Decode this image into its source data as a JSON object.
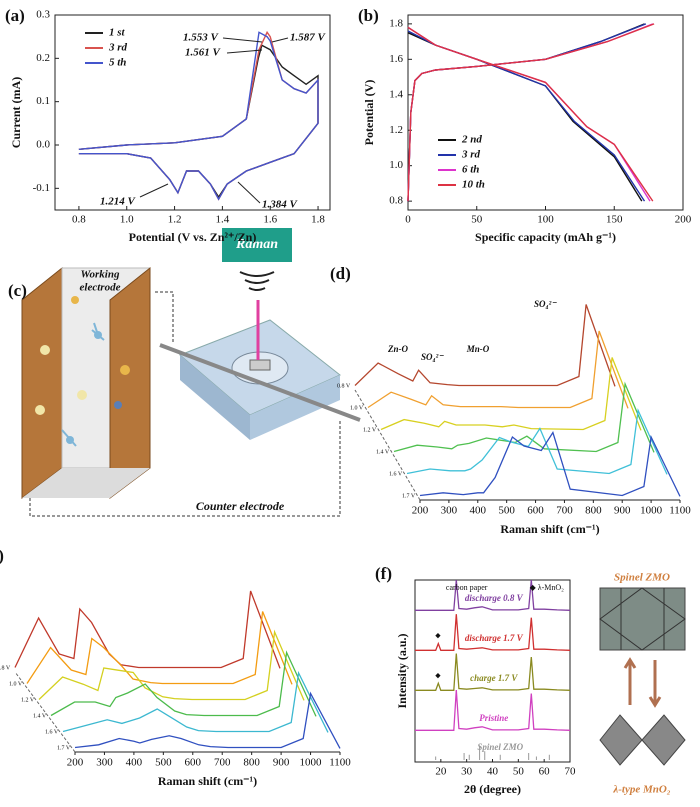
{
  "chart_data": [
    {
      "type": "line",
      "label": "(a)",
      "xlabel": "Potential (V vs. Zn²⁺/Zn)",
      "ylabel": "Current (mA)",
      "xlim": [
        0.7,
        1.85
      ],
      "ylim": [
        -0.15,
        0.3
      ],
      "xticks": [
        0.8,
        {
          "value": 1,
          "label": "1.0"
        },
        1.2,
        1.4,
        1.6,
        1.8
      ],
      "yticks": [
        -0.1,
        {
          "value": 0,
          "label": "0.0"
        },
        0.1,
        0.2,
        0.3
      ],
      "legend": "upper left",
      "annotations": [
        "1.553 V",
        "1.587 V",
        "1.561 V",
        "1.214 V",
        "1.384 V"
      ],
      "series": [
        {
          "name": "1 st",
          "color": "#222222",
          "x": [
            0.8,
            1.0,
            1.2,
            1.4,
            1.5,
            1.55,
            1.565,
            1.6,
            1.65,
            1.7,
            1.75,
            1.8,
            1.8,
            1.7,
            1.6,
            1.5,
            1.42,
            1.384,
            1.35,
            1.3,
            1.25,
            1.214,
            1.18,
            1.1,
            1.0,
            0.8
          ],
          "values": [
            -0.01,
            0,
            0.005,
            0.02,
            0.06,
            0.2,
            0.23,
            0.22,
            0.18,
            0.16,
            0.14,
            0.16,
            0.05,
            -0.02,
            -0.04,
            -0.06,
            -0.09,
            -0.12,
            -0.09,
            -0.06,
            -0.06,
            -0.11,
            -0.08,
            -0.03,
            -0.02,
            -0.02
          ]
        },
        {
          "name": "3 rd",
          "color": "#d9534f",
          "x": [
            0.8,
            1.0,
            1.2,
            1.4,
            1.5,
            1.553,
            1.587,
            1.6,
            1.65,
            1.7,
            1.75,
            1.8,
            1.8,
            1.7,
            1.6,
            1.5,
            1.42,
            1.384,
            1.35,
            1.3,
            1.25,
            1.214,
            1.18,
            1.1,
            1.0,
            0.8
          ],
          "values": [
            -0.01,
            0,
            0.005,
            0.02,
            0.06,
            0.22,
            0.26,
            0.25,
            0.15,
            0.13,
            0.12,
            0.15,
            0.05,
            -0.02,
            -0.04,
            -0.06,
            -0.09,
            -0.125,
            -0.09,
            -0.06,
            -0.06,
            -0.11,
            -0.08,
            -0.03,
            -0.02,
            -0.02
          ]
        },
        {
          "name": "5 th",
          "color": "#4455cc",
          "x": [
            0.8,
            1.0,
            1.2,
            1.4,
            1.5,
            1.553,
            1.587,
            1.6,
            1.65,
            1.7,
            1.75,
            1.8,
            1.8,
            1.7,
            1.6,
            1.5,
            1.42,
            1.384,
            1.35,
            1.3,
            1.25,
            1.214,
            1.18,
            1.1,
            1.0,
            0.8
          ],
          "values": [
            -0.01,
            0,
            0.005,
            0.02,
            0.06,
            0.26,
            0.25,
            0.24,
            0.15,
            0.13,
            0.12,
            0.15,
            0.05,
            -0.02,
            -0.04,
            -0.06,
            -0.09,
            -0.125,
            -0.09,
            -0.06,
            -0.06,
            -0.11,
            -0.08,
            -0.03,
            -0.02,
            -0.02
          ]
        }
      ]
    },
    {
      "type": "line",
      "label": "(b)",
      "xlabel": "Specific capacity (mAh g⁻¹)",
      "ylabel": "Potential (V)",
      "xlim": [
        0,
        200
      ],
      "ylim": [
        0.75,
        1.85
      ],
      "xticks": [
        0,
        50,
        100,
        150,
        200
      ],
      "yticks": [
        0.8,
        {
          "value": 1,
          "label": "1.0"
        },
        1.2,
        1.4,
        1.6,
        1.8
      ],
      "legend": "lower left",
      "series": [
        {
          "name": "2 nd",
          "color": "#111111",
          "x": [
            0,
            2,
            5,
            10,
            20,
            50,
            100,
            140,
            172,
            null,
            0,
            20,
            50,
            100,
            120,
            150,
            170
          ],
          "values": [
            0.8,
            1.3,
            1.48,
            1.52,
            1.54,
            1.56,
            1.6,
            1.7,
            1.8,
            null,
            1.75,
            1.68,
            1.6,
            1.45,
            1.25,
            1.05,
            0.8
          ]
        },
        {
          "name": "3 rd",
          "color": "#2233aa",
          "x": [
            0,
            2,
            5,
            10,
            20,
            50,
            100,
            140,
            173,
            null,
            0,
            20,
            50,
            100,
            121,
            150,
            172
          ],
          "values": [
            0.8,
            1.3,
            1.48,
            1.52,
            1.54,
            1.56,
            1.6,
            1.7,
            1.8,
            null,
            1.76,
            1.68,
            1.6,
            1.45,
            1.25,
            1.06,
            0.8
          ]
        },
        {
          "name": "6 th",
          "color": "#dd33cc",
          "x": [
            0,
            2,
            5,
            10,
            20,
            50,
            100,
            145,
            178,
            null,
            0,
            20,
            50,
            100,
            130,
            150,
            176
          ],
          "values": [
            0.8,
            1.3,
            1.48,
            1.52,
            1.54,
            1.56,
            1.6,
            1.7,
            1.8,
            null,
            1.78,
            1.68,
            1.6,
            1.47,
            1.22,
            1.12,
            0.8
          ]
        },
        {
          "name": "10 th",
          "color": "#dd3344",
          "x": [
            0,
            2,
            5,
            10,
            20,
            50,
            100,
            145,
            179,
            null,
            0,
            20,
            50,
            100,
            130,
            150,
            178
          ],
          "values": [
            0.8,
            1.3,
            1.48,
            1.52,
            1.54,
            1.56,
            1.6,
            1.7,
            1.8,
            null,
            1.78,
            1.68,
            1.6,
            1.47,
            1.22,
            1.12,
            0.8
          ]
        }
      ]
    },
    {
      "type": "waterfall",
      "label": "(d)",
      "xlabel": "Raman shift (cm⁻¹)",
      "xlim": [
        200,
        1100
      ],
      "xticks": [
        200,
        300,
        400,
        500,
        600,
        700,
        800,
        900,
        1000,
        1100
      ],
      "annotations": [
        "Zn-O",
        "SO₄²⁻",
        "Mn-O",
        "SO₄²⁻"
      ],
      "x": [
        200,
        280,
        350,
        400,
        420,
        460,
        520,
        560,
        620,
        660,
        720,
        900,
        975,
        1000,
        1100
      ],
      "series": [
        {
          "name": "0.8 V",
          "color": "#b5472e",
          "values": [
            5,
            30,
            18,
            10,
            22,
            8,
            6,
            5,
            5,
            5,
            5,
            5,
            15,
            95,
            4
          ]
        },
        {
          "name": "1.0 V",
          "color": "#f0a030",
          "values": [
            5,
            22,
            14,
            8,
            18,
            8,
            6,
            6,
            6,
            6,
            5,
            5,
            15,
            90,
            4
          ]
        },
        {
          "name": "1.2 V",
          "color": "#d8d020",
          "values": [
            5,
            16,
            12,
            8,
            14,
            10,
            10,
            10,
            8,
            10,
            6,
            5,
            15,
            85,
            4
          ]
        },
        {
          "name": "1.4 V",
          "color": "#50c050",
          "values": [
            5,
            12,
            10,
            8,
            12,
            14,
            20,
            18,
            15,
            22,
            8,
            5,
            15,
            80,
            4
          ]
        },
        {
          "name": "1.6 V",
          "color": "#40c0d8",
          "values": [
            5,
            10,
            8,
            8,
            10,
            20,
            45,
            40,
            35,
            55,
            10,
            5,
            15,
            75,
            4
          ]
        },
        {
          "name": "1.7 V",
          "color": "#3050c0",
          "values": [
            5,
            8,
            6,
            8,
            8,
            25,
            70,
            60,
            55,
            75,
            12,
            5,
            15,
            70,
            4
          ]
        }
      ]
    },
    {
      "type": "waterfall",
      "label": "(e)",
      "xlabel": "Raman shift (cm⁻¹)",
      "xlim": [
        200,
        1100
      ],
      "xticks": [
        200,
        300,
        400,
        500,
        600,
        700,
        800,
        900,
        1000,
        1100
      ],
      "x": [
        200,
        280,
        350,
        400,
        420,
        460,
        520,
        560,
        620,
        660,
        720,
        900,
        975,
        1000,
        1100
      ],
      "series": [
        {
          "name": "0.8 V",
          "color": "#c0392b",
          "values": [
            5,
            60,
            20,
            15,
            70,
            55,
            20,
            8,
            5,
            5,
            5,
            5,
            15,
            90,
            4
          ]
        },
        {
          "name": "1.0 V",
          "color": "#f39c12",
          "values": [
            5,
            45,
            20,
            15,
            55,
            45,
            25,
            10,
            6,
            5,
            5,
            5,
            15,
            85,
            4
          ]
        },
        {
          "name": "1.2 V",
          "color": "#d4d020",
          "values": [
            5,
            30,
            22,
            15,
            40,
            38,
            35,
            18,
            8,
            6,
            5,
            5,
            15,
            80,
            4
          ]
        },
        {
          "name": "1.4 V",
          "color": "#4cbb4c",
          "values": [
            5,
            20,
            20,
            15,
            25,
            30,
            40,
            25,
            10,
            6,
            5,
            5,
            15,
            75,
            4
          ]
        },
        {
          "name": "1.6 V",
          "color": "#3cb8d0",
          "values": [
            5,
            12,
            18,
            14,
            16,
            20,
            30,
            22,
            10,
            6,
            5,
            5,
            15,
            70,
            4
          ]
        },
        {
          "name": "1.7 V",
          "color": "#3050c0",
          "values": [
            5,
            8,
            15,
            12,
            10,
            14,
            18,
            15,
            8,
            6,
            5,
            5,
            15,
            65,
            4
          ]
        }
      ]
    },
    {
      "type": "stacked-lines",
      "label": "(f)",
      "xlabel": "2θ (degree)",
      "ylabel": "Intensity (a.u.)",
      "xlim": [
        10,
        70
      ],
      "xticks": [
        20,
        30,
        40,
        50,
        60,
        70
      ],
      "annotations": [
        "carbon paper",
        "◆ λ-MnO₂"
      ],
      "x": [
        10,
        15,
        18,
        19,
        20,
        25,
        26,
        27,
        30,
        33,
        36,
        40,
        45,
        50,
        54,
        55,
        56,
        60,
        65,
        70
      ],
      "series": [
        {
          "name": "Pristine",
          "color": "#d040c0",
          "values": [
            5,
            5,
            5,
            5,
            5,
            5,
            120,
            10,
            8,
            12,
            15,
            6,
            6,
            6,
            10,
            110,
            8,
            8,
            6,
            5
          ]
        },
        {
          "name": "charge 1.7 V",
          "color": "#8a8a20",
          "values": [
            5,
            5,
            5,
            25,
            5,
            5,
            110,
            10,
            8,
            10,
            12,
            6,
            6,
            6,
            10,
            100,
            8,
            8,
            6,
            5
          ]
        },
        {
          "name": "discharge 1.7 V",
          "color": "#d03030",
          "values": [
            5,
            5,
            5,
            24,
            5,
            5,
            108,
            10,
            8,
            10,
            12,
            6,
            6,
            6,
            10,
            98,
            8,
            8,
            6,
            5
          ]
        },
        {
          "name": "discharge 0.8 V",
          "color": "#8040a0",
          "values": [
            5,
            5,
            5,
            5,
            5,
            5,
            100,
            10,
            8,
            12,
            15,
            6,
            6,
            6,
            10,
            95,
            8,
            8,
            6,
            5
          ]
        }
      ],
      "reference": {
        "name": "Spinel ZMO",
        "x": [
          18,
          29,
          31,
          35,
          37,
          43,
          54,
          57,
          62
        ],
        "values": [
          10,
          20,
          15,
          40,
          25,
          15,
          20,
          10,
          15
        ]
      },
      "structure_labels": [
        "Spinel ZMO",
        "λ-type MnO₂"
      ]
    }
  ],
  "diagram": {
    "label": "(c)",
    "working_electrode": [
      "Working",
      "electrode"
    ],
    "instrument": "Raman",
    "counter_electrode": "Counter electrode"
  }
}
